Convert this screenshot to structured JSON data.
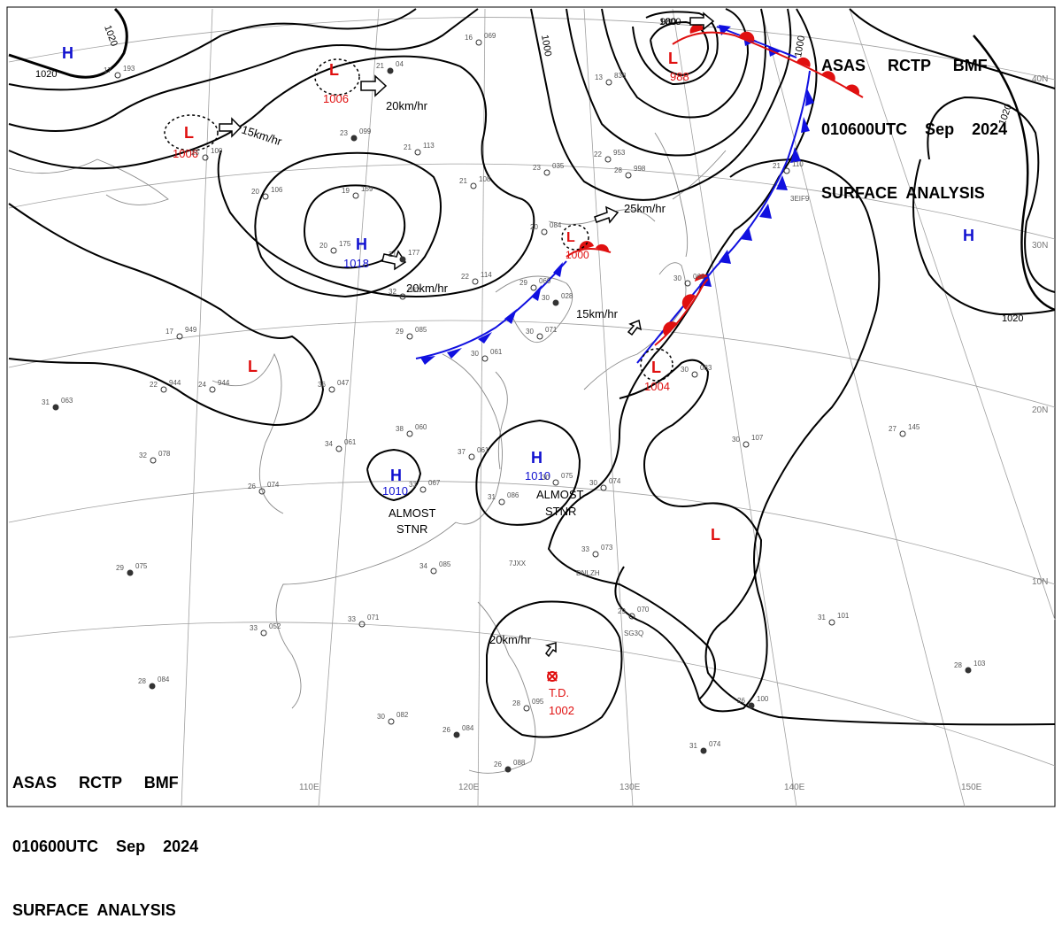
{
  "header": {
    "line1": "ASAS     RCTP     BMF",
    "line2": "010600UTC    Sep    2024",
    "line3": "SURFACE  ANALYSIS"
  },
  "footer": {
    "line1": "ASAS     RCTP     BMF",
    "line2": "010600UTC    Sep    2024",
    "line3": "SURFACE  ANALYSIS"
  },
  "grid_labels": {
    "lon": [
      "110E",
      "120E",
      "130E",
      "140E",
      "150E"
    ],
    "lat": [
      "40N",
      "30N",
      "20N",
      "10N"
    ]
  },
  "isobar_labels": [
    "1020",
    "1020",
    "1000",
    "1000",
    "1000",
    "1020",
    "1020",
    "980"
  ],
  "pressure_centers": [
    {
      "type": "H",
      "value": ""
    },
    {
      "type": "L",
      "value": "1006"
    },
    {
      "type": "L",
      "value": "1006"
    },
    {
      "type": "H",
      "value": "1018"
    },
    {
      "type": "L",
      "value": ""
    },
    {
      "type": "L",
      "value": "1000"
    },
    {
      "type": "L",
      "value": "988"
    },
    {
      "type": "L",
      "value": "1004"
    },
    {
      "type": "H",
      "value": ""
    },
    {
      "type": "H",
      "value": "1010"
    },
    {
      "type": "H",
      "value": "1010"
    },
    {
      "type": "L",
      "value": ""
    }
  ],
  "movement_labels": [
    "15km/hr",
    "20km/hr",
    "20km/hr",
    "25km/hr",
    "15km/hr",
    "20km/hr"
  ],
  "almost_stnr": [
    "ALMOST",
    "STNR",
    "ALMOST",
    "STNR"
  ],
  "td": {
    "label": "T.D.",
    "value": "1002"
  },
  "stations": [
    {
      "t": "17",
      "p": "193"
    },
    {
      "t": "21",
      "p": "04"
    },
    {
      "t": "16",
      "p": "069"
    },
    {
      "t": "25",
      "p": "100"
    },
    {
      "t": "23",
      "p": "099"
    },
    {
      "t": "21",
      "p": "113"
    },
    {
      "t": "20",
      "p": "106"
    },
    {
      "t": "19",
      "p": "159"
    },
    {
      "t": "20",
      "p": "175"
    },
    {
      "t": "21",
      "p": "177"
    },
    {
      "t": "22",
      "p": "114"
    },
    {
      "t": "29",
      "p": "069"
    },
    {
      "t": "32",
      "p": "082"
    },
    {
      "t": "29",
      "p": "085"
    },
    {
      "t": "17",
      "p": "949"
    },
    {
      "t": "24",
      "p": "944"
    },
    {
      "t": "22",
      "p": "944"
    },
    {
      "t": "31",
      "p": "063"
    },
    {
      "t": "36",
      "p": "047"
    },
    {
      "t": "38",
      "p": "060"
    },
    {
      "t": "34",
      "p": "061"
    },
    {
      "t": "32",
      "p": "078"
    },
    {
      "t": "26",
      "p": "074"
    },
    {
      "t": "37",
      "p": "061"
    },
    {
      "t": "33",
      "p": "067"
    },
    {
      "t": "31",
      "p": "086"
    },
    {
      "t": "30",
      "p": "075"
    },
    {
      "t": "30",
      "p": "074"
    },
    {
      "t": "33",
      "p": "073"
    },
    {
      "t": "34",
      "p": "085"
    },
    {
      "t": "29",
      "p": "075"
    },
    {
      "t": "33",
      "p": "071"
    },
    {
      "t": "33",
      "p": "052"
    },
    {
      "t": "29",
      "p": "070"
    },
    {
      "t": "28",
      "p": "084"
    },
    {
      "t": "30",
      "p": "082"
    },
    {
      "t": "26",
      "p": "084"
    },
    {
      "t": "26",
      "p": "088"
    },
    {
      "t": "28",
      "p": "095"
    },
    {
      "t": "31",
      "p": "074"
    },
    {
      "t": "26",
      "p": "100"
    },
    {
      "t": "28",
      "p": "103"
    },
    {
      "t": "31",
      "p": "101"
    },
    {
      "t": "27",
      "p": "145"
    },
    {
      "t": "30",
      "p": "107"
    },
    {
      "t": "30",
      "p": "083"
    },
    {
      "t": "30",
      "p": "066"
    },
    {
      "t": "22",
      "p": "953"
    },
    {
      "t": "21",
      "p": "110"
    },
    {
      "t": "20",
      "p": "084"
    },
    {
      "t": "23",
      "p": "035"
    },
    {
      "t": "21",
      "p": "108"
    },
    {
      "t": "30",
      "p": "028"
    },
    {
      "t": "30",
      "p": "071"
    },
    {
      "t": "30",
      "p": "061"
    },
    {
      "t": "13",
      "p": "838"
    },
    {
      "t": "28",
      "p": "998"
    }
  ],
  "ship_ids": [
    "7JXX",
    "DNLZH",
    "SG3Q",
    "3EIF9"
  ],
  "colors": {
    "isobar": "#000000",
    "high": "#1010d0",
    "low": "#e01010",
    "cold_front": "#1010e0",
    "warm_front": "#e01010",
    "grid": "#999999",
    "coast": "#888888"
  }
}
